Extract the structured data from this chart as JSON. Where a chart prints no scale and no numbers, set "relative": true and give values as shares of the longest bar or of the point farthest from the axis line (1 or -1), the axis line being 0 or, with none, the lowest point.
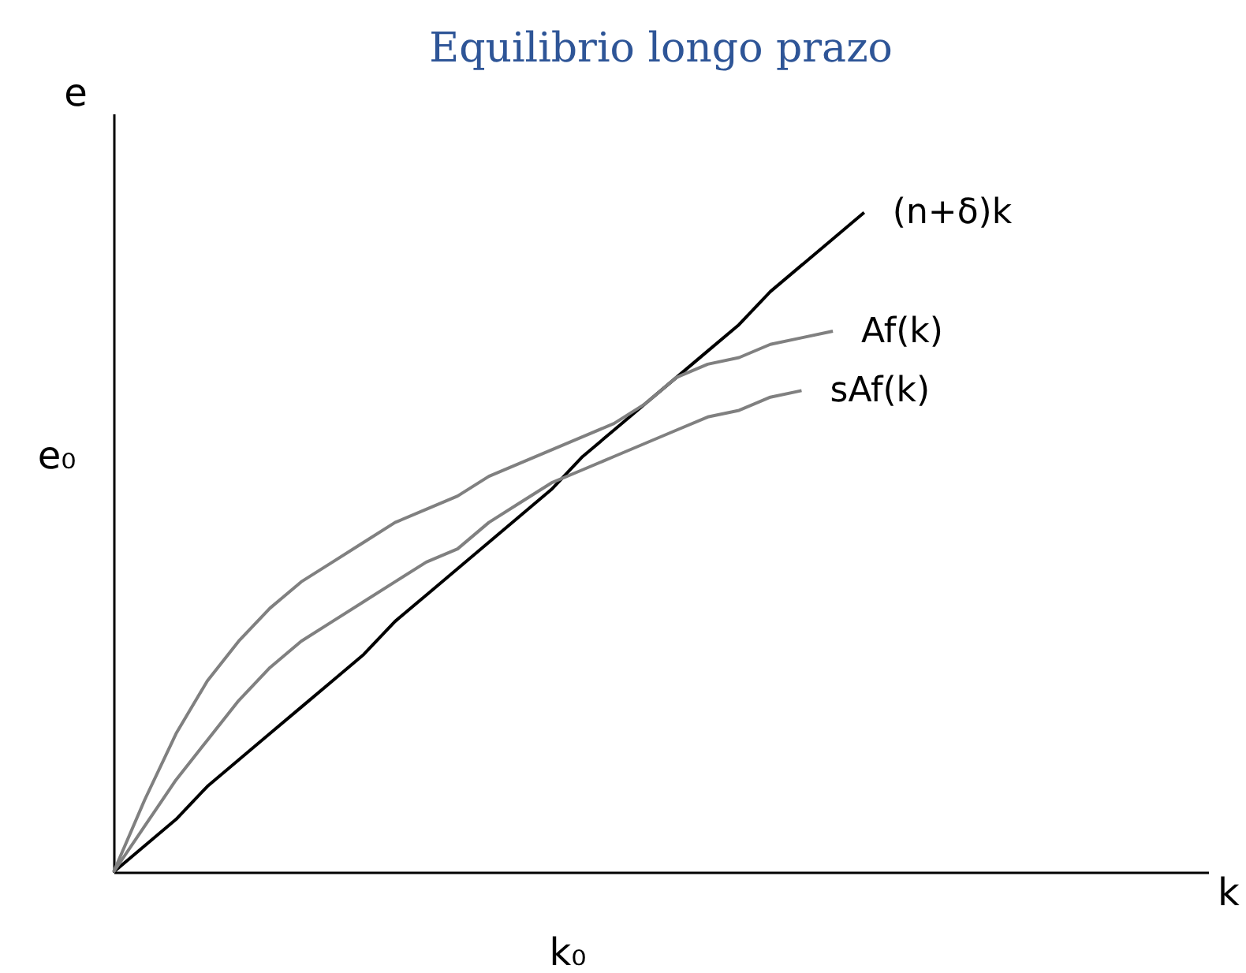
{
  "chart_data": {
    "type": "line",
    "title": "Equilibrio longo prazo",
    "xlabel": "k",
    "ylabel": "e",
    "relative": true,
    "grid": false,
    "legend": false,
    "categories": [
      null,
      null,
      null,
      null,
      null,
      null,
      null,
      null,
      null,
      null,
      null,
      null,
      null,
      null,
      null,
      null,
      null,
      null,
      null,
      null,
      null,
      null,
      null,
      null,
      null,
      null,
      null,
      null,
      null,
      null,
      null,
      null,
      null,
      null,
      null,
      null
    ],
    "series": [
      {
        "name": "(n+δ)k",
        "color": "#000000",
        "values": [
          0,
          0.04,
          0.08,
          0.13,
          0.17,
          0.21,
          0.25,
          0.29,
          0.33,
          0.38,
          0.42,
          0.46,
          0.5,
          0.54,
          0.58,
          0.63,
          0.67,
          0.71,
          0.75,
          0.79,
          0.83,
          0.88,
          0.92,
          0.96,
          1,
          null,
          null,
          null,
          null,
          null,
          null,
          null,
          null,
          null,
          null,
          null
        ]
      },
      {
        "name": "Af(k)",
        "color": "#808080",
        "values": [
          0,
          0.11,
          0.21,
          0.29,
          0.35,
          0.4,
          0.44,
          0.47,
          0.5,
          0.53,
          0.55,
          0.57,
          0.6,
          0.62,
          0.64,
          0.66,
          0.68,
          0.71,
          0.75,
          0.77,
          0.78,
          0.8,
          0.81,
          0.82,
          null,
          null,
          null,
          null,
          null,
          null,
          null,
          null,
          null,
          null,
          null,
          null
        ]
      },
      {
        "name": "sAf(k)",
        "color": "#808080",
        "values": [
          0,
          0.07,
          0.14,
          0.2,
          0.26,
          0.31,
          0.35,
          0.38,
          0.41,
          0.44,
          0.47,
          0.49,
          0.53,
          0.56,
          0.59,
          0.61,
          0.63,
          0.65,
          0.67,
          0.69,
          0.7,
          0.72,
          0.73,
          null,
          null,
          null,
          null,
          null,
          null,
          null,
          null,
          null,
          null,
          null,
          null,
          null
        ]
      }
    ],
    "annotations": [
      "k₀",
      "e₀"
    ]
  }
}
